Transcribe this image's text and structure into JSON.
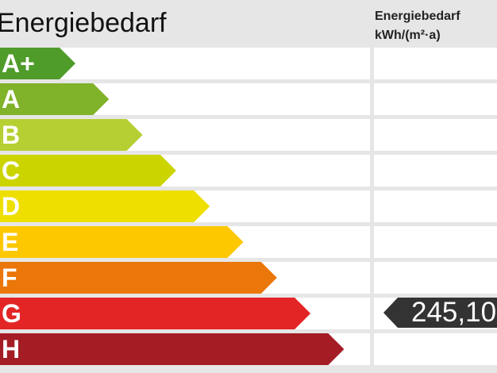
{
  "title": "Energiebedarf",
  "header": {
    "line1": "Energiebedarf",
    "line2": "kWh/(m²·a)"
  },
  "classes": [
    {
      "label": "A+",
      "color": "#509c2b"
    },
    {
      "label": "A",
      "color": "#80b22a"
    },
    {
      "label": "B",
      "color": "#b6d033"
    },
    {
      "label": "C",
      "color": "#ccd400"
    },
    {
      "label": "D",
      "color": "#eedf00"
    },
    {
      "label": "E",
      "color": "#fdc800"
    },
    {
      "label": "F",
      "color": "#eb7609"
    },
    {
      "label": "G",
      "color": "#e32526"
    },
    {
      "label": "H",
      "color": "#a41c24"
    }
  ],
  "value": {
    "text": "245,10",
    "class": "G"
  }
}
